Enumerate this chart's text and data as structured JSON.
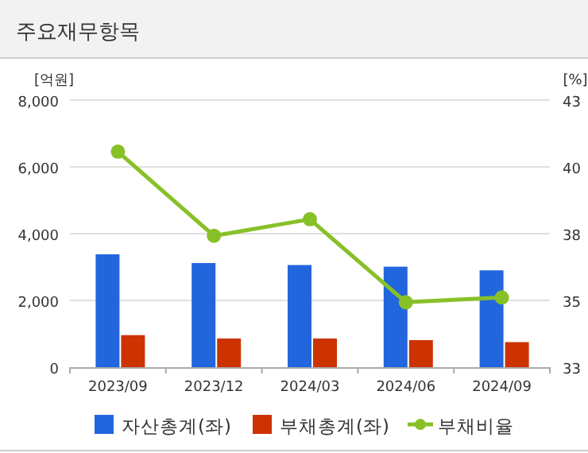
{
  "chart_data": {
    "type": "bar",
    "title": "주요재무항목",
    "ylabel": "[억원]",
    "y2label": "[%]",
    "categories": [
      "2023/09",
      "2023/12",
      "2024/03",
      "2024/06",
      "2024/09"
    ],
    "series": [
      {
        "name": "자산총계(좌)",
        "color": "#2266dd",
        "values": [
          3380,
          3120,
          3060,
          3010,
          2900
        ]
      },
      {
        "name": "부채총계(좌)",
        "color": "#cc3300",
        "values": [
          960,
          860,
          860,
          810,
          750
        ]
      },
      {
        "name": "부채비율",
        "type": "line",
        "axis": "y2",
        "color": "#88c028",
        "values": [
          41.07,
          37.92,
          38.54,
          35.43,
          35.61
        ]
      }
    ],
    "ylim": [
      0,
      8000
    ],
    "yticks": [
      {
        "value": 0,
        "label": "0"
      },
      {
        "value": 2000,
        "label": "2,000"
      },
      {
        "value": 4000,
        "label": "4,000"
      },
      {
        "value": 6000,
        "label": "6,000"
      },
      {
        "value": 8000,
        "label": "8,000"
      }
    ],
    "y2lim": [
      33,
      43
    ],
    "y2ticks": [
      33,
      {
        "value": 35.5,
        "label": "35"
      },
      38,
      {
        "value": 40.5,
        "label": "40"
      },
      43
    ],
    "grid": "y",
    "legend": "bottom",
    "marker": "circle",
    "line_style": "solid"
  }
}
